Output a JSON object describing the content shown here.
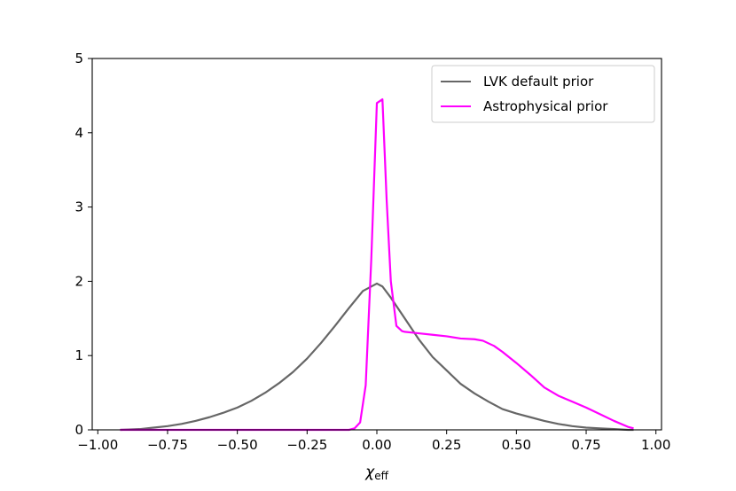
{
  "chart_data": {
    "type": "line",
    "title": "",
    "xlabel": "χ",
    "xlabel_subscript": "eff",
    "ylabel": "",
    "xlim": [
      -1.02,
      1.02
    ],
    "ylim": [
      0,
      5
    ],
    "grid": false,
    "legend_position": "top-right",
    "xticks": [
      -1.0,
      -0.75,
      -0.5,
      -0.25,
      0.0,
      0.25,
      0.5,
      0.75,
      1.0
    ],
    "xtick_labels": [
      "−1.00",
      "−0.75",
      "−0.50",
      "−0.25",
      "0.00",
      "0.25",
      "0.50",
      "0.75",
      "1.00"
    ],
    "yticks": [
      0,
      1,
      2,
      3,
      4,
      5
    ],
    "ytick_labels": [
      "0",
      "1",
      "2",
      "3",
      "4",
      "5"
    ],
    "series": [
      {
        "name": "LVK default prior",
        "color": "#666666",
        "x": [
          -0.92,
          -0.85,
          -0.8,
          -0.75,
          -0.7,
          -0.65,
          -0.6,
          -0.55,
          -0.5,
          -0.45,
          -0.4,
          -0.35,
          -0.3,
          -0.25,
          -0.2,
          -0.15,
          -0.1,
          -0.05,
          0.0,
          0.02,
          0.05,
          0.1,
          0.15,
          0.2,
          0.25,
          0.3,
          0.35,
          0.4,
          0.45,
          0.5,
          0.55,
          0.6,
          0.65,
          0.7,
          0.75,
          0.8,
          0.85,
          0.9,
          0.92
        ],
        "y": [
          0.0,
          0.01,
          0.03,
          0.05,
          0.08,
          0.12,
          0.17,
          0.23,
          0.3,
          0.39,
          0.5,
          0.63,
          0.78,
          0.96,
          1.17,
          1.4,
          1.64,
          1.87,
          1.97,
          1.93,
          1.78,
          1.5,
          1.22,
          0.98,
          0.8,
          0.62,
          0.49,
          0.38,
          0.28,
          0.22,
          0.17,
          0.12,
          0.08,
          0.05,
          0.03,
          0.02,
          0.01,
          0.0,
          0.0
        ]
      },
      {
        "name": "Astrophysical prior",
        "color": "#ff00ff",
        "x": [
          -0.92,
          -0.5,
          -0.1,
          -0.08,
          -0.06,
          -0.04,
          -0.02,
          0.0,
          0.02,
          0.035,
          0.05,
          0.07,
          0.09,
          0.1,
          0.15,
          0.2,
          0.25,
          0.3,
          0.35,
          0.38,
          0.42,
          0.45,
          0.5,
          0.55,
          0.6,
          0.65,
          0.7,
          0.75,
          0.8,
          0.85,
          0.9,
          0.92
        ],
        "y": [
          0.0,
          0.0,
          0.0,
          0.02,
          0.1,
          0.6,
          2.3,
          4.4,
          4.45,
          3.1,
          2.0,
          1.4,
          1.33,
          1.32,
          1.3,
          1.28,
          1.26,
          1.23,
          1.22,
          1.2,
          1.13,
          1.05,
          0.9,
          0.74,
          0.57,
          0.46,
          0.38,
          0.3,
          0.21,
          0.12,
          0.04,
          0.02
        ]
      }
    ]
  }
}
